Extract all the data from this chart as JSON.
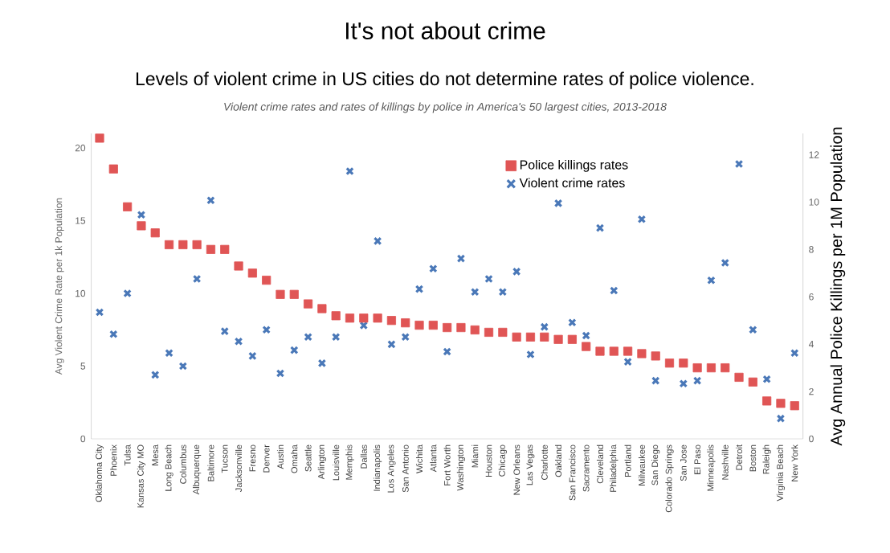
{
  "chart_data": {
    "type": "scatter",
    "title": "It's not about crime",
    "subtitle": "Levels of violent crime in US cities do not determine rates of police violence.",
    "annotations": [
      "Violent crime rates and rates of killings by police in America's 50 largest cities, 2013-2018"
    ],
    "ylabel": "Avg Violent Crime Rate per 1k Population",
    "y2label": "Avg Annual Police Killings per 1M Population",
    "categories": [
      "Oklahoma City",
      "Phoenix",
      "Tulsa",
      "Kansas City MO",
      "Mesa",
      "Long Beach",
      "Columbus",
      "Albuquerque",
      "Baltimore",
      "Tucson",
      "Jacksonville",
      "Fresno",
      "Denver",
      "Austin",
      "Omaha",
      "Seattle",
      "Arlington",
      "Louisville",
      "Memphis",
      "Dallas",
      "Indianapolis",
      "Los Angeles",
      "San Antonio",
      "Wichita",
      "Atlanta",
      "Fort Worth",
      "Washington",
      "Miami",
      "Houston",
      "Chicago",
      "New Orleans",
      "Las Vegas",
      "Charlotte",
      "Oakland",
      "San Francisco",
      "Sacramento",
      "Cleveland",
      "Philadelphia",
      "Portland",
      "Milwaukee",
      "San Diego",
      "Colorado Springs",
      "San Jose",
      "El Paso",
      "Minneapolis",
      "Nashville",
      "Detroit",
      "Boston",
      "Raleigh",
      "Virginia Beach",
      "New York"
    ],
    "series": [
      {
        "name": "Police killings rates",
        "color": "#e05555",
        "marker": "square",
        "axis": "y2",
        "values": [
          12.7,
          11.4,
          9.8,
          9.0,
          8.7,
          8.2,
          8.2,
          8.2,
          8.0,
          8.0,
          7.3,
          7.0,
          6.7,
          6.1,
          6.1,
          5.7,
          5.5,
          5.2,
          5.1,
          5.1,
          5.1,
          5.0,
          4.9,
          4.8,
          4.8,
          4.7,
          4.7,
          4.6,
          4.5,
          4.5,
          4.3,
          4.3,
          4.3,
          4.2,
          4.2,
          3.9,
          3.7,
          3.7,
          3.7,
          3.6,
          3.5,
          3.2,
          3.2,
          3.0,
          3.0,
          3.0,
          2.6,
          2.4,
          1.6,
          1.5,
          1.4
        ]
      },
      {
        "name": "Violent crime rates",
        "color": "#4a78b8",
        "marker": "cross",
        "axis": "y",
        "values": [
          8.7,
          7.2,
          10.0,
          15.4,
          4.4,
          5.9,
          5.0,
          11.0,
          16.4,
          7.4,
          6.7,
          5.7,
          7.5,
          4.5,
          6.1,
          7.0,
          5.2,
          7.0,
          18.4,
          7.8,
          13.6,
          6.5,
          7.0,
          10.3,
          11.7,
          6.0,
          12.4,
          10.1,
          11.0,
          10.1,
          11.5,
          5.8,
          7.7,
          16.2,
          8.0,
          7.1,
          14.5,
          10.2,
          5.3,
          15.1,
          4.0,
          null,
          3.8,
          4.0,
          10.9,
          12.1,
          18.9,
          7.5,
          4.1,
          1.4,
          5.9
        ]
      }
    ],
    "ylim": [
      0,
      21
    ],
    "yticks": [
      0,
      5,
      10,
      15,
      20
    ],
    "y2lim": [
      0,
      12.9
    ],
    "y2ticks": [
      0,
      2,
      4,
      6,
      8,
      10,
      12
    ],
    "grid": false,
    "legend": "top right"
  }
}
